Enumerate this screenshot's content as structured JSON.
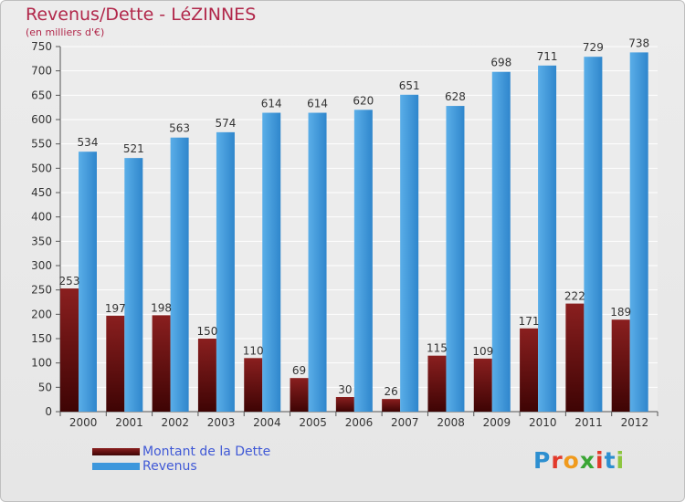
{
  "header": {
    "title": "Revenus/Dette - LéZINNES",
    "subtitle": "(en milliers d'€)"
  },
  "legend": {
    "items": [
      {
        "label": "Montant de la Dette",
        "color": "#6e0f0f"
      },
      {
        "label": "Revenus",
        "color": "#3d97dc"
      }
    ]
  },
  "logo": {
    "text": "Proxiti",
    "letter_colors": [
      "#2d8fd0",
      "#e2392a",
      "#f09a1c",
      "#3aa534",
      "#e2392a",
      "#2d8fd0",
      "#8dc63f"
    ]
  },
  "chart_data": {
    "type": "bar",
    "title": "Revenus/Dette - LéZINNES",
    "subtitle": "(en milliers d'€)",
    "categories": [
      "2000",
      "2001",
      "2002",
      "2003",
      "2004",
      "2005",
      "2006",
      "2007",
      "2008",
      "2009",
      "2010",
      "2011",
      "2012"
    ],
    "series": [
      {
        "name": "Montant de la Dette",
        "color": "#7a1515",
        "values": [
          253,
          197,
          198,
          150,
          110,
          69,
          30,
          26,
          115,
          109,
          171,
          222,
          189
        ]
      },
      {
        "name": "Revenus",
        "color": "#3d97dc",
        "values": [
          534,
          521,
          563,
          574,
          614,
          614,
          620,
          651,
          628,
          698,
          711,
          729,
          738
        ]
      }
    ],
    "yticks": [
      0,
      50,
      100,
      150,
      200,
      250,
      300,
      350,
      400,
      450,
      500,
      550,
      600,
      650,
      700,
      750
    ],
    "ylim": [
      0,
      750
    ],
    "grid": true,
    "legend_position": "bottom-left"
  }
}
